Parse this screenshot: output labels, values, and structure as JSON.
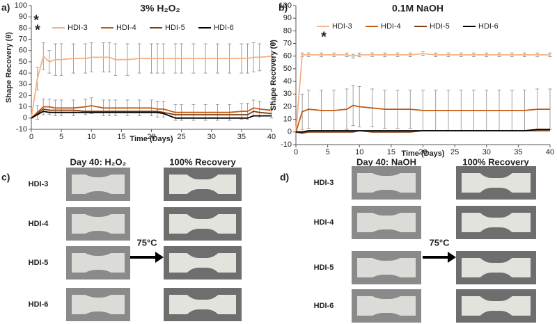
{
  "chart_data": [
    {
      "type": "line",
      "panel_label": "a)",
      "title": "3% H₂O₂",
      "x_label": "Time (Days)",
      "y_label": "Shape Recovery (θ)",
      "xlim": [
        0,
        40
      ],
      "xticks": [
        0,
        5,
        10,
        15,
        20,
        25,
        30,
        35,
        40
      ],
      "ylim": [
        -10,
        100
      ],
      "yticks": [
        -10,
        0,
        10,
        20,
        30,
        40,
        50,
        60,
        70,
        80,
        90,
        100
      ],
      "x": [
        0,
        1,
        2,
        3,
        4,
        5,
        7,
        9,
        10,
        12,
        13,
        14,
        16,
        18,
        20,
        21,
        22,
        24,
        25,
        27,
        29,
        31,
        33,
        35,
        36,
        37,
        38,
        40
      ],
      "series": [
        {
          "name": "HDI-3",
          "color": "#f4b183",
          "values": [
            0,
            35,
            55,
            50,
            52,
            52,
            53,
            53,
            54,
            54,
            54,
            52,
            52,
            53,
            53,
            53,
            53,
            53,
            53,
            53,
            53,
            53,
            53,
            53,
            53,
            54,
            54,
            55
          ],
          "errors": [
            0,
            10,
            12,
            10,
            14,
            14,
            13,
            13,
            13,
            13,
            13,
            14,
            14,
            13,
            13,
            13,
            13,
            13,
            13,
            13,
            13,
            13,
            13,
            13,
            13,
            13,
            12,
            13
          ]
        },
        {
          "name": "HDI-4",
          "color": "#c55a11",
          "values": [
            0,
            5,
            10,
            10,
            9,
            9,
            9,
            10,
            11,
            9,
            9,
            9,
            9,
            9,
            9,
            8,
            8,
            5,
            5,
            5,
            5,
            5,
            5,
            6,
            6,
            9,
            8,
            7
          ],
          "errors": [
            0,
            6,
            7,
            7,
            7,
            7,
            7,
            7,
            7,
            7,
            7,
            7,
            7,
            7,
            7,
            7,
            7,
            7,
            7,
            7,
            7,
            7,
            7,
            7,
            7,
            7,
            7,
            7
          ]
        },
        {
          "name": "HDI-5",
          "color": "#843c0c",
          "values": [
            0,
            4,
            8,
            7,
            7,
            7,
            7,
            6,
            6,
            6,
            6,
            6,
            6,
            6,
            6,
            6,
            5,
            3,
            3,
            3,
            3,
            3,
            3,
            3,
            3,
            6,
            5,
            4
          ]
        },
        {
          "name": "HDI-6",
          "color": "#000000",
          "values": [
            0,
            3,
            6,
            5,
            5,
            5,
            5,
            5,
            5,
            5,
            5,
            5,
            5,
            5,
            5,
            5,
            4,
            0,
            0,
            0,
            0,
            0,
            0,
            0,
            0,
            2,
            2,
            2
          ]
        }
      ],
      "annotations": [
        {
          "text": "*",
          "color": "#000000"
        },
        {
          "text": "*",
          "color": "#f4b183"
        }
      ]
    },
    {
      "type": "line",
      "panel_label": "b)",
      "title": "0.1M NaOH",
      "x_label": "Time (Days)",
      "y_label": "Shape Recovery (θ)",
      "xlim": [
        0,
        40
      ],
      "xticks": [
        0,
        5,
        10,
        15,
        20,
        25,
        30,
        35,
        40
      ],
      "ylim": [
        -10,
        100
      ],
      "yticks": [
        -10,
        0,
        10,
        20,
        30,
        40,
        50,
        60,
        70,
        80,
        90,
        100
      ],
      "x": [
        0,
        1,
        2,
        4,
        6,
        8,
        9,
        10,
        12,
        14,
        16,
        18,
        20,
        22,
        24,
        26,
        28,
        30,
        32,
        34,
        36,
        38,
        40
      ],
      "series": [
        {
          "name": "HDI-3",
          "color": "#f4b183",
          "values": [
            0,
            61,
            61,
            61,
            61,
            61,
            60,
            61,
            61,
            61,
            61,
            61,
            62,
            61,
            61,
            61,
            61,
            61,
            61,
            61,
            61,
            61,
            61
          ],
          "errors": [
            0,
            1.5,
            1.5,
            1.5,
            1.5,
            1.5,
            1.5,
            1.5,
            1.5,
            1.5,
            1.5,
            1.5,
            1.5,
            1.5,
            1.5,
            1.5,
            1.5,
            1.5,
            1.5,
            1.5,
            1.5,
            1.5,
            1.5
          ]
        },
        {
          "name": "HDI-4",
          "color": "#c55a11",
          "values": [
            0,
            16,
            18,
            17,
            17,
            18,
            21,
            20,
            19,
            18,
            18,
            18,
            17,
            17,
            17,
            17,
            17,
            17,
            17,
            17,
            17,
            18,
            18
          ],
          "errors": [
            0,
            14,
            15,
            16,
            16,
            16,
            16,
            16,
            15,
            15,
            15,
            15,
            16,
            16,
            16,
            16,
            16,
            16,
            16,
            16,
            16,
            16,
            16
          ]
        },
        {
          "name": "HDI-5",
          "color": "#843c0c",
          "values": [
            0,
            -1,
            0,
            0,
            0,
            0,
            0,
            1,
            0,
            0,
            0,
            0,
            1,
            1,
            1,
            1,
            1,
            1,
            1,
            1,
            1,
            1,
            1
          ]
        },
        {
          "name": "HDI-6",
          "color": "#000000",
          "values": [
            0,
            0,
            1,
            1,
            1,
            1,
            1,
            1,
            1,
            1,
            1,
            1,
            1,
            1,
            1,
            1,
            1,
            1,
            1,
            1,
            1,
            2,
            2
          ]
        }
      ],
      "annotations": [
        {
          "text": "*",
          "color": "#f4b183"
        }
      ]
    }
  ],
  "photo_panels": [
    {
      "panel_label": "c)",
      "left_title": "Day 40: H₂O₂",
      "right_title": "100% Recovery",
      "temperature": "75°C",
      "rows": [
        "HDI-3",
        "HDI-4",
        "HDI-5",
        "HDI-6"
      ]
    },
    {
      "panel_label": "d)",
      "left_title": "Day 40: NaOH",
      "right_title": "100% Recovery",
      "temperature": "75°C",
      "rows": [
        "HDI-3",
        "HDI-4",
        "HDI-5",
        "HDI-6"
      ]
    }
  ]
}
